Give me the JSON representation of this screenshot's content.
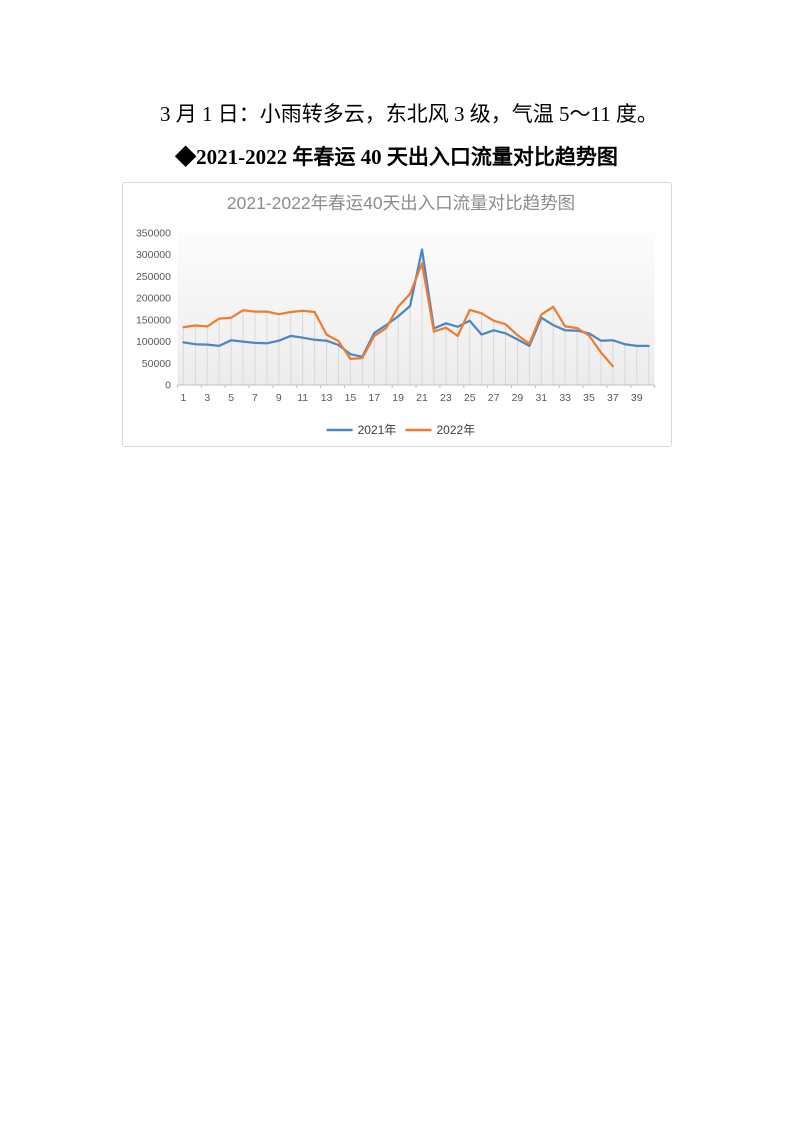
{
  "document": {
    "weather_line": "3 月 1 日：小雨转多云，东北风 3 级，气温 5～11 度。",
    "heading": "◆2021-2022 年春运 40 天出入口流量对比趋势图"
  },
  "chart_data": {
    "type": "line",
    "title": "2021-2022年春运40天出入口流量对比趋势图",
    "title_color": "#8c8c8c",
    "axis_label_color": "#595959",
    "axis_line_color": "#bfbfbf",
    "drop_line_color": "#d9d9d9",
    "plot_bg_top": "#fcfcfc",
    "plot_bg_bottom": "#ececec",
    "legend_position": "bottom",
    "legend_text_color": "#404040",
    "grid": "vertical drop lines at every day",
    "ylim": [
      0,
      350000
    ],
    "y_ticks": [
      0,
      50000,
      100000,
      150000,
      200000,
      250000,
      300000,
      350000
    ],
    "x": [
      1,
      2,
      3,
      4,
      5,
      6,
      7,
      8,
      9,
      10,
      11,
      12,
      13,
      14,
      15,
      16,
      17,
      18,
      19,
      20,
      21,
      22,
      23,
      24,
      25,
      26,
      27,
      28,
      29,
      30,
      31,
      32,
      33,
      34,
      35,
      36,
      37,
      38,
      39,
      40
    ],
    "x_tick_labels": [
      1,
      3,
      5,
      7,
      9,
      11,
      13,
      15,
      17,
      19,
      21,
      23,
      25,
      27,
      29,
      31,
      33,
      35,
      37,
      39
    ],
    "series": [
      {
        "name": "2021年",
        "color": "#4e86c4",
        "values": [
          98000,
          94000,
          93000,
          90000,
          103000,
          100000,
          97000,
          96000,
          102000,
          113000,
          109000,
          104000,
          102000,
          92000,
          71000,
          65000,
          120000,
          138000,
          158000,
          182000,
          312000,
          130000,
          142000,
          134000,
          148000,
          116000,
          126000,
          119000,
          105000,
          90000,
          155000,
          138000,
          126000,
          125000,
          119000,
          102000,
          103000,
          94000,
          90000,
          90000
        ]
      },
      {
        "name": "2022年",
        "color": "#ed7d31",
        "values": [
          133000,
          137000,
          135000,
          153000,
          155000,
          172000,
          169000,
          169000,
          163000,
          168000,
          171000,
          168000,
          116000,
          101000,
          60000,
          62000,
          113000,
          131000,
          180000,
          210000,
          280000,
          123000,
          132000,
          113000,
          173000,
          165000,
          148000,
          140000,
          115000,
          95000,
          162000,
          180000,
          135000,
          131000,
          114000,
          75000,
          43000
        ]
      }
    ]
  }
}
